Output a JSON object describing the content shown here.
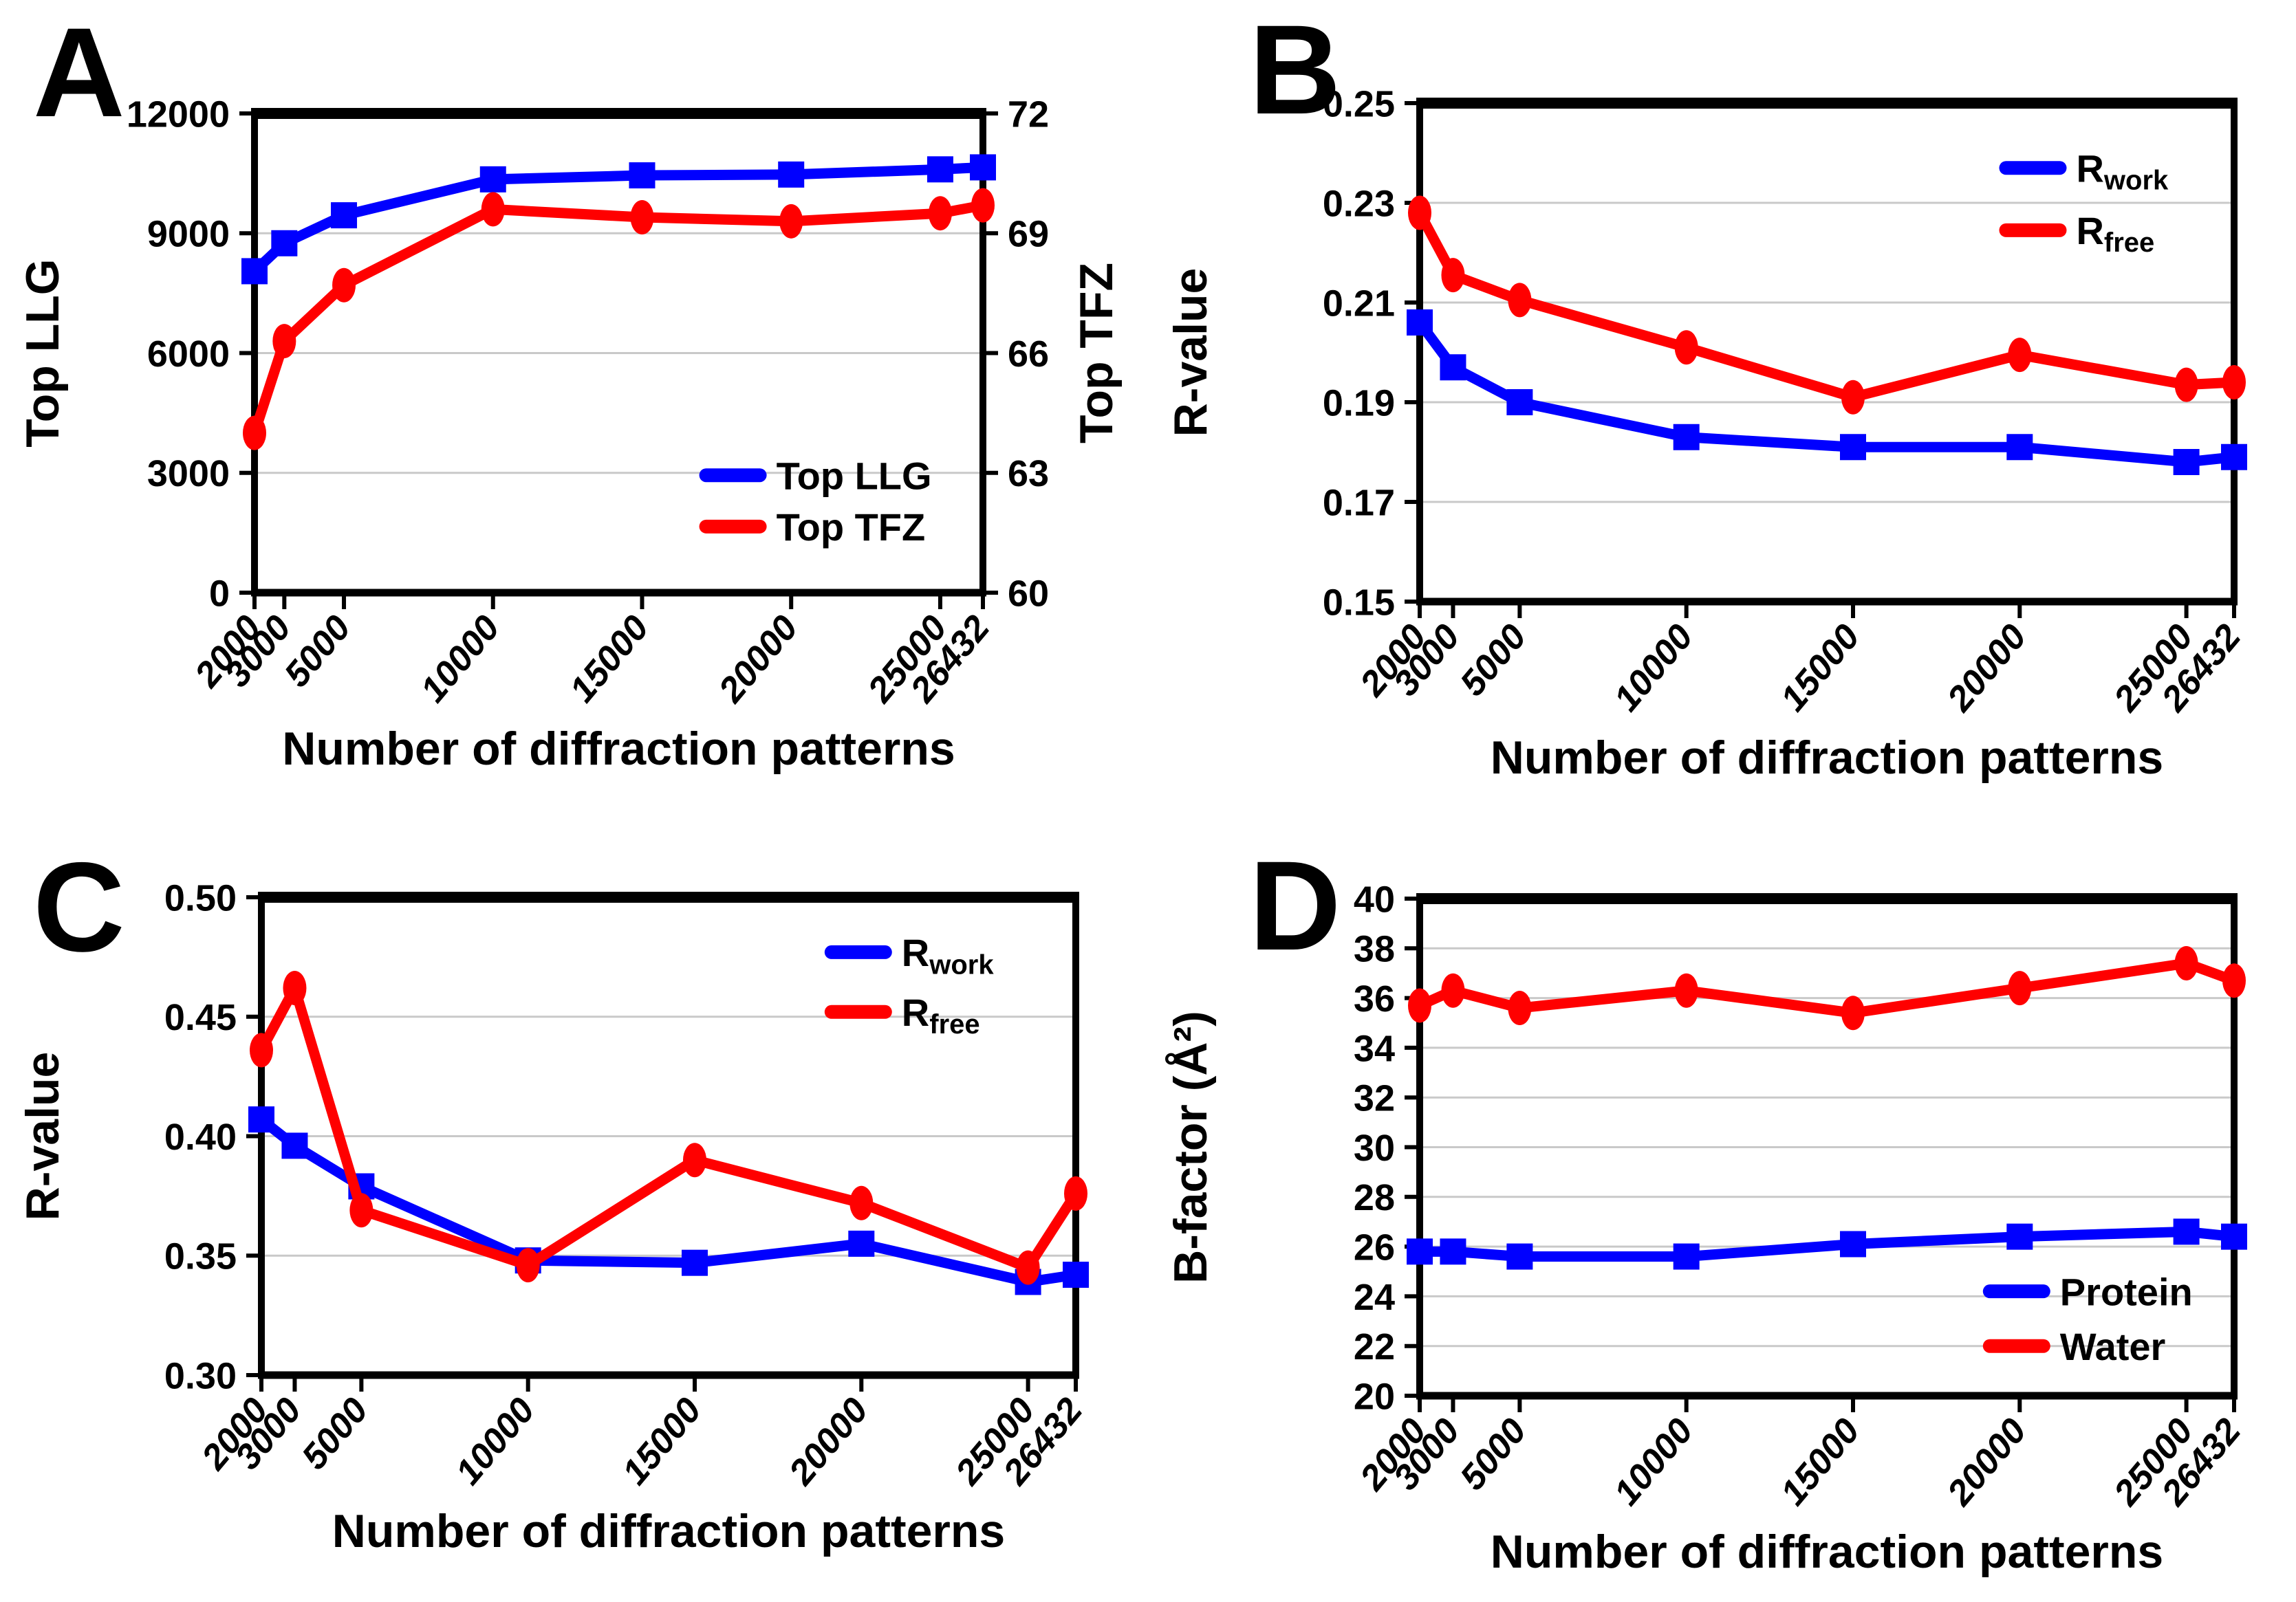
{
  "figure": {
    "background_color": "#ffffff",
    "series_colors": {
      "blue": "#0000ff",
      "red": "#ff0000"
    },
    "gridline_color": "#c9c9c9",
    "xlabel_shared": "Number of diffraction patterns"
  },
  "chart_data": [
    {
      "id": "A",
      "panel_label": "A",
      "type": "line",
      "xlabel": "Number of diffraction patterns",
      "x_values": [
        2000,
        3000,
        5000,
        10000,
        15000,
        20000,
        25000,
        26432
      ],
      "x_tick_labels": [
        "2000",
        "3000",
        "5000",
        "10000",
        "15000",
        "20000",
        "25000",
        "26432"
      ],
      "left_axis": {
        "label": "Top LLG",
        "min": 0,
        "max": 12000,
        "ticks": [
          "0",
          "3000",
          "6000",
          "9000",
          "12000"
        ]
      },
      "right_axis": {
        "label": "Top TFZ",
        "min": 60,
        "max": 72,
        "ticks": [
          "60",
          "63",
          "66",
          "69",
          "72"
        ]
      },
      "series": [
        {
          "name": "Top LLG",
          "axis": "left",
          "color": "#0000ff",
          "marker": "square",
          "values": [
            8050,
            8750,
            9450,
            10350,
            10450,
            10470,
            10600,
            10650
          ]
        },
        {
          "name": "Top TFZ",
          "axis": "right",
          "color": "#ff0000",
          "marker": "circle",
          "values": [
            64.0,
            66.3,
            67.7,
            69.6,
            69.4,
            69.3,
            69.5,
            69.7
          ]
        }
      ],
      "legend": {
        "position": "bottom-right",
        "items": [
          {
            "main": "Top LLG",
            "sub": "",
            "color": "#0000ff"
          },
          {
            "main": "Top TFZ",
            "sub": "",
            "color": "#ff0000"
          }
        ]
      }
    },
    {
      "id": "B",
      "panel_label": "B",
      "type": "line",
      "xlabel": "Number of diffraction patterns",
      "x_values": [
        2000,
        3000,
        5000,
        10000,
        15000,
        20000,
        25000,
        26432
      ],
      "x_tick_labels": [
        "2000",
        "3000",
        "5000",
        "10000",
        "15000",
        "20000",
        "25000",
        "26432"
      ],
      "left_axis": {
        "label": "R-value",
        "min": 0.15,
        "max": 0.25,
        "ticks": [
          "0.15",
          "0.17",
          "0.19",
          "0.21",
          "0.23",
          "0.25"
        ]
      },
      "series": [
        {
          "name": "Rwork",
          "axis": "left",
          "color": "#0000ff",
          "marker": "square",
          "values": [
            0.206,
            0.197,
            0.19,
            0.183,
            0.181,
            0.181,
            0.178,
            0.179
          ]
        },
        {
          "name": "Rfree",
          "axis": "left",
          "color": "#ff0000",
          "marker": "circle",
          "values": [
            0.228,
            0.2155,
            0.2105,
            0.201,
            0.191,
            0.1995,
            0.1935,
            0.194
          ]
        }
      ],
      "legend": {
        "position": "top-right",
        "items": [
          {
            "main": "R",
            "sub": "work",
            "color": "#0000ff"
          },
          {
            "main": "R",
            "sub": "free",
            "color": "#ff0000"
          }
        ]
      }
    },
    {
      "id": "C",
      "panel_label": "C",
      "type": "line",
      "xlabel": "Number of diffraction patterns",
      "x_values": [
        2000,
        3000,
        5000,
        10000,
        15000,
        20000,
        25000,
        26432
      ],
      "x_tick_labels": [
        "2000",
        "3000",
        "5000",
        "10000",
        "15000",
        "20000",
        "25000",
        "26432"
      ],
      "left_axis": {
        "label": "R-value",
        "min": 0.3,
        "max": 0.5,
        "ticks": [
          "0.30",
          "0.35",
          "0.40",
          "0.45",
          "0.50"
        ]
      },
      "series": [
        {
          "name": "Rwork",
          "axis": "left",
          "color": "#0000ff",
          "marker": "square",
          "values": [
            0.407,
            0.396,
            0.379,
            0.348,
            0.347,
            0.355,
            0.339,
            0.342
          ]
        },
        {
          "name": "Rfree",
          "axis": "left",
          "color": "#ff0000",
          "marker": "circle",
          "values": [
            0.436,
            0.462,
            0.369,
            0.346,
            0.39,
            0.372,
            0.345,
            0.376
          ]
        }
      ],
      "legend": {
        "position": "top-right",
        "items": [
          {
            "main": "R",
            "sub": "work",
            "color": "#0000ff"
          },
          {
            "main": "R",
            "sub": "free",
            "color": "#ff0000"
          }
        ]
      }
    },
    {
      "id": "D",
      "panel_label": "D",
      "type": "line",
      "xlabel": "Number of diffraction patterns",
      "x_values": [
        2000,
        3000,
        5000,
        10000,
        15000,
        20000,
        25000,
        26432
      ],
      "x_tick_labels": [
        "2000",
        "3000",
        "5000",
        "10000",
        "15000",
        "20000",
        "25000",
        "26432"
      ],
      "left_axis": {
        "label": "B-factor (Å²)",
        "min": 20,
        "max": 40,
        "ticks": [
          "20",
          "22",
          "24",
          "26",
          "28",
          "30",
          "32",
          "34",
          "36",
          "38",
          "40"
        ]
      },
      "series": [
        {
          "name": "Protein",
          "axis": "left",
          "color": "#0000ff",
          "marker": "square",
          "values": [
            25.8,
            25.8,
            25.6,
            25.6,
            26.1,
            26.4,
            26.6,
            26.4
          ]
        },
        {
          "name": "Water",
          "axis": "left",
          "color": "#ff0000",
          "marker": "circle",
          "values": [
            35.7,
            36.3,
            35.6,
            36.3,
            35.4,
            36.4,
            37.4,
            36.7
          ]
        }
      ],
      "legend": {
        "position": "right-lower",
        "items": [
          {
            "main": "Protein",
            "sub": "",
            "color": "#0000ff"
          },
          {
            "main": "Water",
            "sub": "",
            "color": "#ff0000"
          }
        ]
      }
    }
  ]
}
